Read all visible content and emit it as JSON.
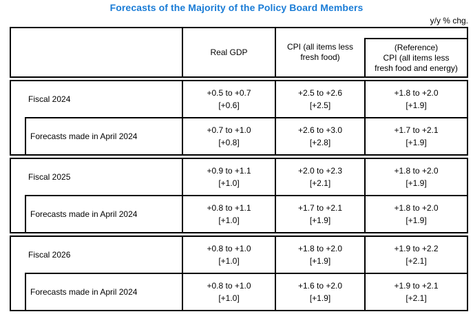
{
  "page": {
    "title": "Forecasts of the Majority of the Policy Board Members",
    "unit_note": "y/y % chg.",
    "title_color": "#1a7cd6",
    "border_color": "#000000"
  },
  "table": {
    "header": {
      "real_gdp": "Real GDP",
      "cpi_line1": "CPI (all items less",
      "cpi_line2": "fresh food)",
      "ref_line1": "(Reference)",
      "ref_line2": "CPI (all items less",
      "ref_line3": "fresh food and energy)"
    },
    "blocks": [
      {
        "fiscal": {
          "label": "Fiscal 2024",
          "gdp_range": "+0.5 to +0.7",
          "gdp_median": "[+0.6]",
          "cpi_range": "+2.5 to +2.6",
          "cpi_median": "[+2.5]",
          "ref_range": "+1.8 to +2.0",
          "ref_median": "[+1.9]"
        },
        "april": {
          "label": "Forecasts made in April 2024",
          "gdp_range": "+0.7 to +1.0",
          "gdp_median": "[+0.8]",
          "cpi_range": "+2.6 to +3.0",
          "cpi_median": "[+2.8]",
          "ref_range": "+1.7 to +2.1",
          "ref_median": "[+1.9]"
        }
      },
      {
        "fiscal": {
          "label": "Fiscal 2025",
          "gdp_range": "+0.9 to +1.1",
          "gdp_median": "[+1.0]",
          "cpi_range": "+2.0 to +2.3",
          "cpi_median": "[+2.1]",
          "ref_range": "+1.8 to +2.0",
          "ref_median": "[+1.9]"
        },
        "april": {
          "label": "Forecasts made in April 2024",
          "gdp_range": "+0.8 to +1.1",
          "gdp_median": "[+1.0]",
          "cpi_range": "+1.7 to +2.1",
          "cpi_median": "[+1.9]",
          "ref_range": "+1.8 to +2.0",
          "ref_median": "[+1.9]"
        }
      },
      {
        "fiscal": {
          "label": "Fiscal 2026",
          "gdp_range": "+0.8 to +1.0",
          "gdp_median": "[+1.0]",
          "cpi_range": "+1.8 to +2.0",
          "cpi_median": "[+1.9]",
          "ref_range": "+1.9 to +2.2",
          "ref_median": "[+2.1]"
        },
        "april": {
          "label": "Forecasts made in April 2024",
          "gdp_range": "+0.8 to +1.0",
          "gdp_median": "[+1.0]",
          "cpi_range": "+1.6 to +2.0",
          "cpi_median": "[+1.9]",
          "ref_range": "+1.9 to +2.1",
          "ref_median": "[+2.1]"
        }
      }
    ]
  }
}
